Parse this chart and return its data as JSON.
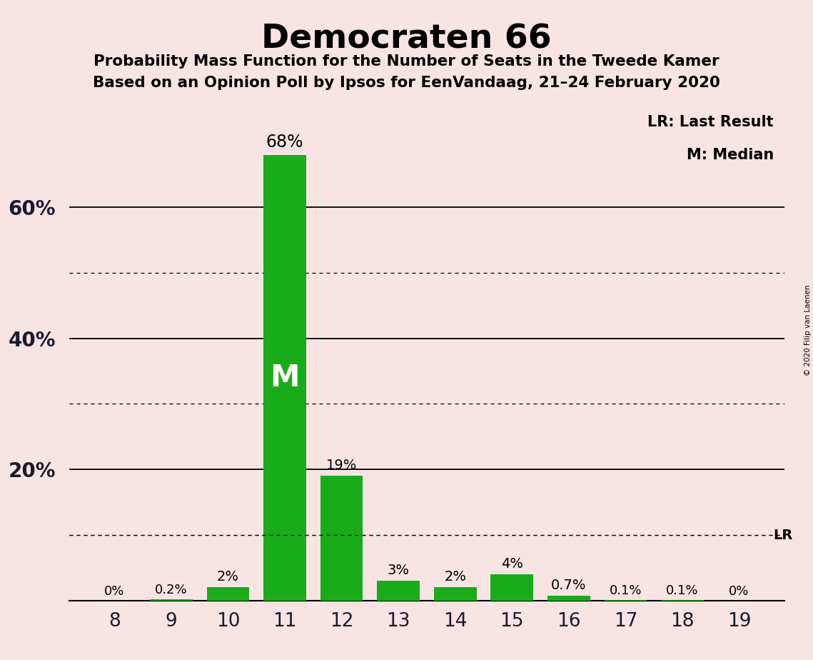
{
  "title": "Democraten 66",
  "subtitle1": "Probability Mass Function for the Number of Seats in the Tweede Kamer",
  "subtitle2": "Based on an Opinion Poll by Ipsos for EenVandaag, 21–24 February 2020",
  "categories": [
    8,
    9,
    10,
    11,
    12,
    13,
    14,
    15,
    16,
    17,
    18,
    19
  ],
  "values": [
    0.0,
    0.2,
    2.0,
    68.0,
    19.0,
    3.0,
    2.0,
    4.0,
    0.7,
    0.1,
    0.1,
    0.0
  ],
  "labels": [
    "0%",
    "0.2%",
    "2%",
    "68%",
    "19%",
    "3%",
    "2%",
    "4%",
    "0.7%",
    "0.1%",
    "0.1%",
    "0%"
  ],
  "bar_color": "#1aab1a",
  "background_color": "#f9e4e4",
  "median_bar": 11,
  "legend_lr": "LR: Last Result",
  "legend_m": "M: Median",
  "copyright": "© 2020 Filip van Laenen",
  "solid_yticks": [
    0,
    20,
    40,
    60
  ],
  "dotted_yticks": [
    10,
    30,
    50
  ],
  "lr_y": 10.0,
  "ylim": [
    0,
    76
  ],
  "xlim": [
    7.2,
    19.8
  ]
}
